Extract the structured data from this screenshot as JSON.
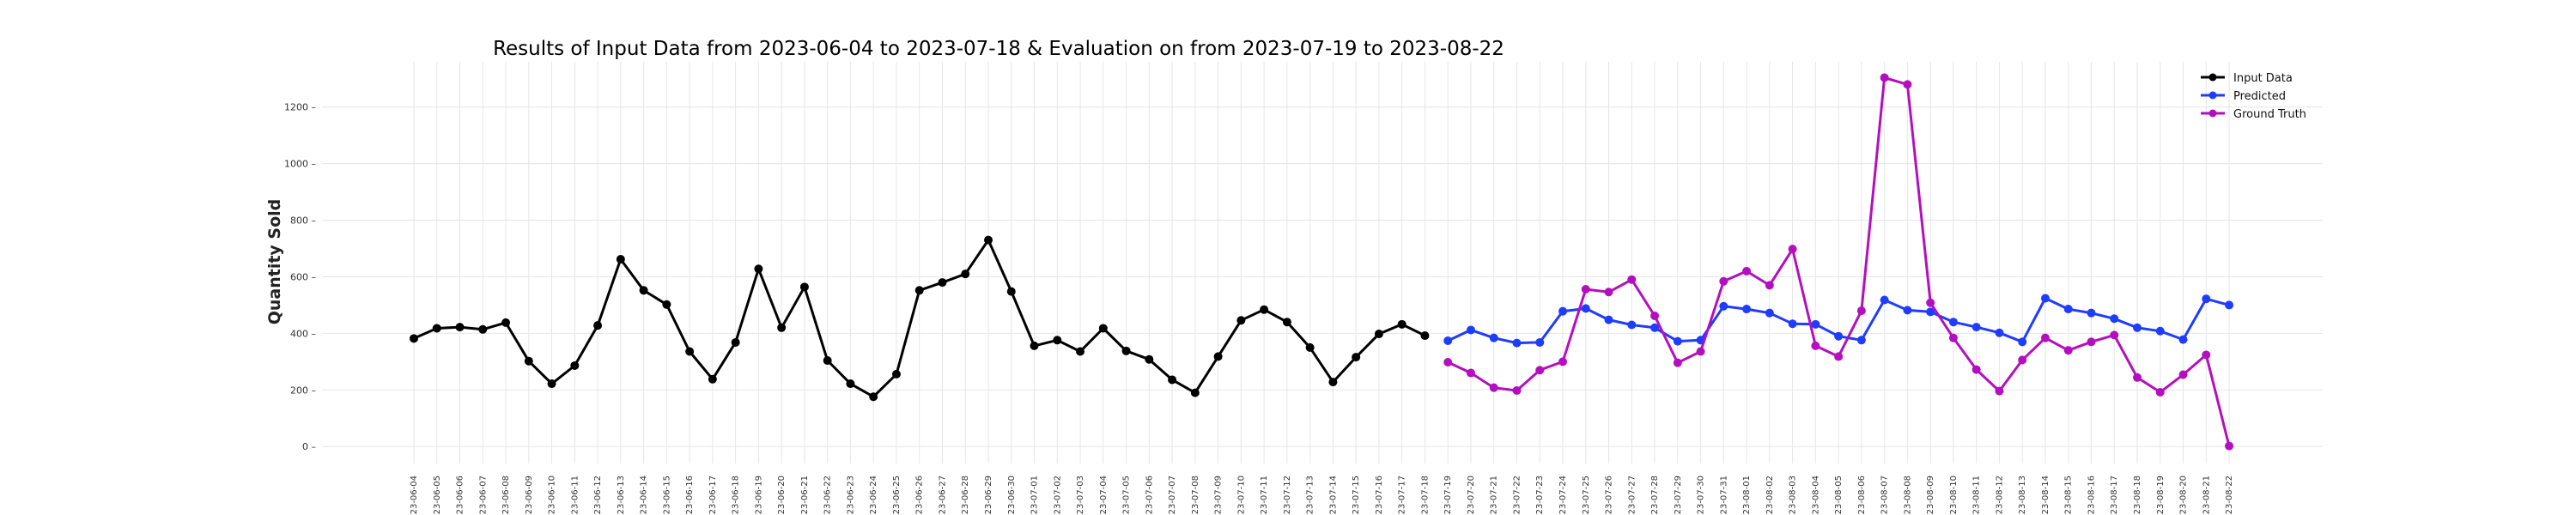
{
  "chart_data": {
    "type": "line",
    "title": "Results of Input Data from 2023-06-04 to 2023-07-18 & Evaluation on from 2023-07-19 to 2023-08-22",
    "xlabel": "",
    "ylabel": "Quantity Sold",
    "ylim": [
      -60,
      1360
    ],
    "yticks": [
      0,
      200,
      400,
      600,
      800,
      1000,
      1200
    ],
    "grid": true,
    "legend_position": "top-right",
    "series": [
      {
        "name": "Input Data",
        "color": "#000000",
        "x": [
          "2023-06-04",
          "2023-06-05",
          "2023-06-06",
          "2023-06-07",
          "2023-06-08",
          "2023-06-09",
          "2023-06-10",
          "2023-06-11",
          "2023-06-12",
          "2023-06-13",
          "2023-06-14",
          "2023-06-15",
          "2023-06-16",
          "2023-06-17",
          "2023-06-18",
          "2023-06-19",
          "2023-06-20",
          "2023-06-21",
          "2023-06-22",
          "2023-06-23",
          "2023-06-24",
          "2023-06-25",
          "2023-06-26",
          "2023-06-27",
          "2023-06-28",
          "2023-06-29",
          "2023-06-30",
          "2023-07-01",
          "2023-07-02",
          "2023-07-03",
          "2023-07-04",
          "2023-07-05",
          "2023-07-06",
          "2023-07-07",
          "2023-07-08",
          "2023-07-09",
          "2023-07-10",
          "2023-07-11",
          "2023-07-12",
          "2023-07-13",
          "2023-07-14",
          "2023-07-15",
          "2023-07-16",
          "2023-07-17",
          "2023-07-18"
        ],
        "values": [
          382,
          418,
          422,
          414,
          438,
          302,
          222,
          286,
          428,
          662,
          552,
          502,
          336,
          238,
          368,
          628,
          420,
          564,
          304,
          222,
          176,
          256,
          552,
          580,
          610,
          730,
          548,
          356,
          376,
          336,
          418,
          338,
          308,
          236,
          190,
          318,
          446,
          484,
          440,
          350,
          228,
          316,
          398,
          432,
          392
        ]
      },
      {
        "name": "Predicted",
        "color": "#1f3cff",
        "x": [
          "2023-07-19",
          "2023-07-20",
          "2023-07-21",
          "2023-07-22",
          "2023-07-23",
          "2023-07-24",
          "2023-07-25",
          "2023-07-26",
          "2023-07-27",
          "2023-07-28",
          "2023-07-29",
          "2023-07-30",
          "2023-07-31",
          "2023-08-01",
          "2023-08-02",
          "2023-08-03",
          "2023-08-04",
          "2023-08-05",
          "2023-08-06",
          "2023-08-07",
          "2023-08-08",
          "2023-08-09",
          "2023-08-10",
          "2023-08-11",
          "2023-08-12",
          "2023-08-13",
          "2023-08-14",
          "2023-08-15",
          "2023-08-16",
          "2023-08-17",
          "2023-08-18",
          "2023-08-19",
          "2023-08-20",
          "2023-08-21",
          "2023-08-22"
        ],
        "values": [
          374,
          412,
          384,
          366,
          368,
          478,
          488,
          448,
          430,
          420,
          372,
          376,
          496,
          486,
          472,
          434,
          432,
          390,
          376,
          518,
          482,
          476,
          440,
          422,
          402,
          370,
          524,
          486,
          472,
          452,
          420,
          408,
          378,
          522,
          500
        ]
      },
      {
        "name": "Ground Truth",
        "color": "#b40fbf",
        "x": [
          "2023-07-19",
          "2023-07-20",
          "2023-07-21",
          "2023-07-22",
          "2023-07-23",
          "2023-07-24",
          "2023-07-25",
          "2023-07-26",
          "2023-07-27",
          "2023-07-28",
          "2023-07-29",
          "2023-07-30",
          "2023-07-31",
          "2023-08-01",
          "2023-08-02",
          "2023-08-03",
          "2023-08-04",
          "2023-08-05",
          "2023-08-06",
          "2023-08-07",
          "2023-08-08",
          "2023-08-09",
          "2023-08-10",
          "2023-08-11",
          "2023-08-12",
          "2023-08-13",
          "2023-08-14",
          "2023-08-15",
          "2023-08-16",
          "2023-08-17",
          "2023-08-18",
          "2023-08-19",
          "2023-08-20",
          "2023-08-21",
          "2023-08-22"
        ],
        "values": [
          298,
          260,
          208,
          198,
          270,
          300,
          556,
          546,
          590,
          462,
          296,
          336,
          584,
          620,
          570,
          698,
          356,
          318,
          480,
          1304,
          1280,
          508,
          384,
          272,
          196,
          306,
          384,
          340,
          370,
          394,
          244,
          192,
          254,
          324,
          2
        ]
      }
    ]
  }
}
